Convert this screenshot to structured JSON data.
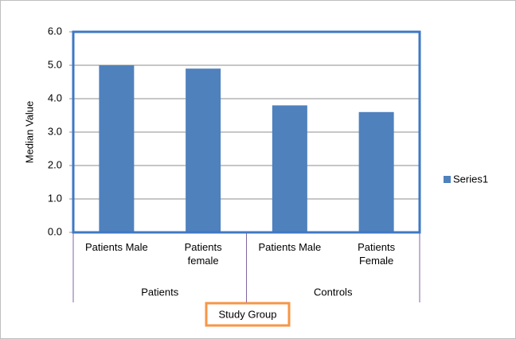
{
  "chart_data": {
    "type": "bar",
    "categories": [
      "Patients Male",
      "Patients female",
      "Patients Male",
      "Patients Female"
    ],
    "groups": [
      "Patients",
      "Controls"
    ],
    "series": [
      {
        "name": "Series1",
        "color": "#4f81bd",
        "values": [
          5.0,
          4.9,
          3.8,
          3.6
        ]
      }
    ],
    "y_label": "Median Value",
    "x_label": "Study Group",
    "ylim": [
      0,
      6
    ],
    "yticks": [
      {
        "value": 0,
        "label": "0.0"
      },
      {
        "value": 1,
        "label": "1.0"
      },
      {
        "value": 2,
        "label": "2.0"
      },
      {
        "value": 3,
        "label": "3.0"
      },
      {
        "value": 4,
        "label": "4.0"
      },
      {
        "value": 5,
        "label": "5.0"
      },
      {
        "value": 6,
        "label": "6.0"
      }
    ],
    "grid": true,
    "legend": "right"
  }
}
